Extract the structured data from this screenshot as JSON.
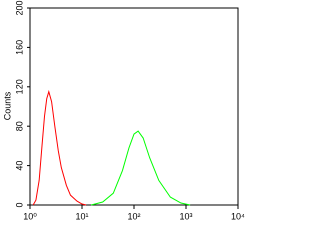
{
  "chart_data": {
    "type": "line",
    "ylabel": "Counts",
    "xscale": "log",
    "xlim": [
      1,
      10000
    ],
    "xticks": [
      {
        "value": 1,
        "label": "10⁰"
      },
      {
        "value": 10,
        "label": "10¹"
      },
      {
        "value": 100,
        "label": "10²"
      },
      {
        "value": 1000,
        "label": "10³"
      },
      {
        "value": 10000,
        "label": "10⁴"
      }
    ],
    "ylim": [
      0,
      200
    ],
    "yticks": [
      0,
      40,
      80,
      120,
      160,
      200
    ],
    "series": [
      {
        "color": "#ff0000",
        "x": [
          1.15,
          1.3,
          1.5,
          1.7,
          1.9,
          2.1,
          2.3,
          2.6,
          3,
          3.5,
          4,
          5,
          6,
          8,
          10,
          12
        ],
        "values": [
          0,
          5,
          25,
          60,
          90,
          108,
          115,
          105,
          80,
          55,
          38,
          20,
          10,
          4,
          1,
          0
        ]
      },
      {
        "color": "#00ff00",
        "x": [
          15,
          25,
          40,
          60,
          80,
          100,
          120,
          150,
          200,
          300,
          500,
          800,
          1200
        ],
        "values": [
          0,
          3,
          12,
          35,
          58,
          72,
          75,
          68,
          48,
          25,
          8,
          2,
          0
        ]
      }
    ]
  }
}
